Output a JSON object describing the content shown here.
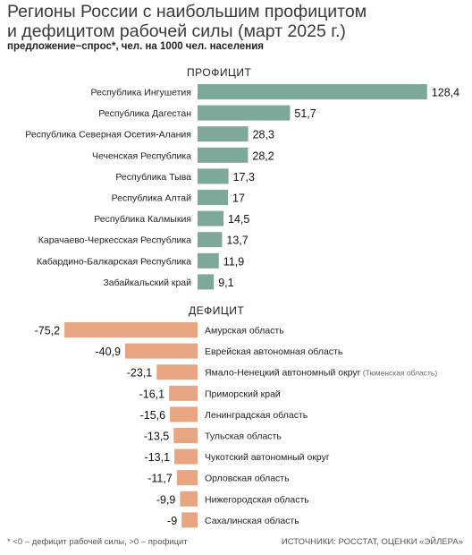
{
  "title_line1": "Регионы России с наибольшим профицитом",
  "title_line2": "и дефицитом рабочей силы (март 2025 г.)",
  "subtitle": "предложение−спрос*, чел. на 1000 чел. населения",
  "footnote": "* <0 – дефицит рабочей силы, >0 – профицит",
  "sources": "ИСТОЧНИКИ: РОССТАТ, ОЦЕНКИ «ЭЙЛЕРА»",
  "colors": {
    "surplus": "#7ea99a",
    "deficit": "#e8a582"
  },
  "chart_data": [
    {
      "type": "bar",
      "title": "ПРОФИЦИТ",
      "orientation": "horizontal",
      "categories": [
        "Республика Ингушетия",
        "Республика Дагестан",
        "Республика Северная Осетия-Алания",
        "Чеченская Республика",
        "Республика Тыва",
        "Республика Алтай",
        "Республика Калмыкия",
        "Карачаево-Черкесская Республика",
        "Кабардино-Балкарская Республика",
        "Забайкальский край"
      ],
      "values": [
        128.4,
        51.7,
        28.3,
        28.2,
        17.3,
        17,
        14.5,
        13.7,
        11.9,
        9.1
      ],
      "value_labels": [
        "128,4",
        "51,7",
        "28,3",
        "28,2",
        "17,3",
        "17",
        "14,5",
        "13,7",
        "11,9",
        "9,1"
      ]
    },
    {
      "type": "bar",
      "title": "ДЕФИЦИТ",
      "orientation": "horizontal",
      "categories": [
        "Амурская область",
        "Еврейская автономная область",
        "Ямало-Ненецкий автономный округ",
        "Приморский край",
        "Ленинградская область",
        "Тульская область",
        "Чукотский автономный округ",
        "Орловская область",
        "Нижегородская область",
        "Сахалинская область"
      ],
      "category_notes": [
        "",
        "",
        "(Тюменская область)",
        "",
        "",
        "",
        "",
        "",
        "",
        ""
      ],
      "values": [
        -75.2,
        -40.9,
        -23.1,
        -16.1,
        -15.6,
        -13.5,
        -13.1,
        -11.7,
        -9.9,
        -9
      ],
      "value_labels": [
        "-75,2",
        "-40,9",
        "-23,1",
        "-16,1",
        "-15,6",
        "-13,5",
        "-13,1",
        "-11,7",
        "-9,9",
        "-9"
      ]
    }
  ]
}
